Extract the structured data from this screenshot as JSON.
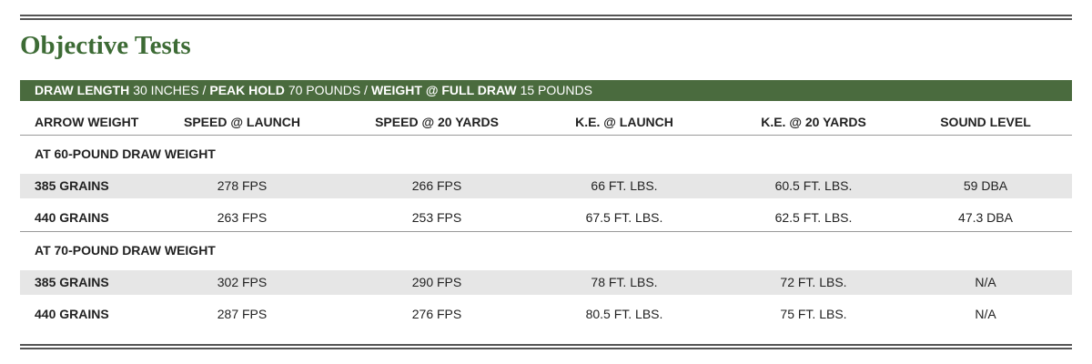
{
  "title": "Objective Tests",
  "banner": [
    {
      "text": "DRAW LENGTH",
      "bold": true
    },
    {
      "text": "30 INCHES /",
      "bold": false
    },
    {
      "text": "PEAK HOLD",
      "bold": true
    },
    {
      "text": "70 POUNDS /",
      "bold": false
    },
    {
      "text": "WEIGHT @ FULL DRAW",
      "bold": true
    },
    {
      "text": "15 POUNDS",
      "bold": false
    }
  ],
  "table": {
    "headers": [
      "ARROW WEIGHT",
      "SPEED @ LAUNCH",
      "SPEED @ 20 YARDS",
      "K.E. @ LAUNCH",
      "K.E. @ 20 YARDS",
      "SOUND LEVEL"
    ],
    "sections": [
      {
        "label": "AT 60-POUND DRAW WEIGHT",
        "rows": [
          [
            "385 GRAINS",
            "278 FPS",
            "266 FPS",
            "66 FT. LBS.",
            "60.5 FT. LBS.",
            "59 DBA"
          ],
          [
            "440 GRAINS",
            "263 FPS",
            "253 FPS",
            "67.5 FT. LBS.",
            "62.5 FT. LBS.",
            "47.3 DBA"
          ]
        ]
      },
      {
        "label": "AT 70-POUND DRAW WEIGHT",
        "rows": [
          [
            "385 GRAINS",
            "302 FPS",
            "290 FPS",
            "78 FT. LBS.",
            "72 FT. LBS.",
            "N/A"
          ],
          [
            "440 GRAINS",
            "287 FPS",
            "276 FPS",
            "80.5 FT. LBS.",
            "75 FT. LBS.",
            "N/A"
          ]
        ]
      }
    ]
  }
}
